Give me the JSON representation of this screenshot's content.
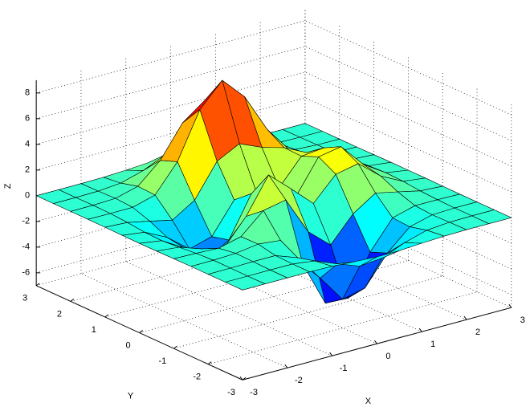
{
  "chart_data": {
    "type": "surface",
    "x": [
      -3,
      -2.5,
      -2,
      -1.5,
      -1,
      -0.5,
      0,
      0.5,
      1,
      1.5,
      2,
      2.5,
      3
    ],
    "y": [
      -3,
      -2.5,
      -2,
      -1.5,
      -1,
      -0.5,
      0,
      0.5,
      1,
      1.5,
      2,
      2.5,
      3
    ],
    "z": [
      [
        0,
        0,
        0,
        0,
        -0.03,
        -0.14,
        -0.24,
        -0.22,
        -0.11,
        -0.03,
        0,
        0,
        0
      ],
      [
        0,
        0,
        0.01,
        0,
        -0.23,
        -0.92,
        -1.57,
        -1.41,
        -0.69,
        -0.18,
        -0.03,
        0,
        0
      ],
      [
        0,
        0.01,
        0.05,
        0.05,
        -0.59,
        -2.64,
        -4.76,
        -4.35,
        -2.1,
        -0.53,
        -0.06,
        0,
        0
      ],
      [
        0,
        0.01,
        0.08,
        0.33,
        0.15,
        -2.19,
        -5.68,
        -5.76,
        -2.64,
        -0.44,
        0.04,
        0.03,
        0
      ],
      [
        -0.01,
        -0.06,
        -0.13,
        0.3,
        1.86,
        2.22,
        -0.72,
        -2.22,
        -0.27,
        0.88,
        0.5,
        0.11,
        0.01
      ],
      [
        -0.03,
        -0.2,
        -0.8,
        -1.21,
        0.8,
        3.55,
        2.0,
        0.39,
        2.2,
        2.56,
        1.12,
        0.24,
        0.03
      ],
      [
        -0.04,
        -0.3,
        -1.33,
        -2.77,
        -1.65,
        1.48,
        0.98,
        0.37,
        2.94,
        3.27,
        1.41,
        0.3,
        0.03
      ],
      [
        -0.03,
        -0.25,
        -1.12,
        -2.49,
        -2.0,
        0.39,
        0.46,
        0.38,
        2.38,
        2.56,
        1.09,
        0.23,
        0.03
      ],
      [
        -0.01,
        -0.11,
        -0.48,
        -0.86,
        0.23,
        2.79,
        3.69,
        2.93,
        2.43,
        1.58,
        0.58,
        0.11,
        0.01
      ],
      [
        0,
        -0.02,
        -0.01,
        0.48,
        2.61,
        6.2,
        8.0,
        6.25,
        3.25,
        1.19,
        0.29,
        0.05,
        0
      ],
      [
        0,
        0.01,
        0.08,
        0.55,
        2.1,
        4.56,
        5.86,
        4.57,
        2.21,
        0.68,
        0.13,
        0.02,
        0
      ],
      [
        0,
        0,
        0.03,
        0.19,
        0.69,
        1.47,
        1.88,
        1.47,
        0.7,
        0.2,
        0.04,
        0,
        0
      ],
      [
        0,
        0,
        0.01,
        0.03,
        0.11,
        0.23,
        0.3,
        0.23,
        0.11,
        0.03,
        0.01,
        0,
        0
      ]
    ],
    "xlim": [
      -3,
      3
    ],
    "ylim": [
      -3,
      3
    ],
    "zlim": [
      -7,
      9
    ],
    "xticks": [
      -3,
      -2,
      -1,
      0,
      1,
      2,
      3
    ],
    "yticks": [
      -3,
      -2,
      -1,
      0,
      1,
      2,
      3
    ],
    "zticks": [
      -6,
      -4,
      -2,
      0,
      2,
      4,
      6,
      8
    ],
    "xlabel": "X",
    "ylabel": "Y",
    "zlabel": "Z",
    "colormap": "jet",
    "edgecolor": "#000000",
    "grid": true,
    "view": [
      -37.5,
      30
    ]
  }
}
